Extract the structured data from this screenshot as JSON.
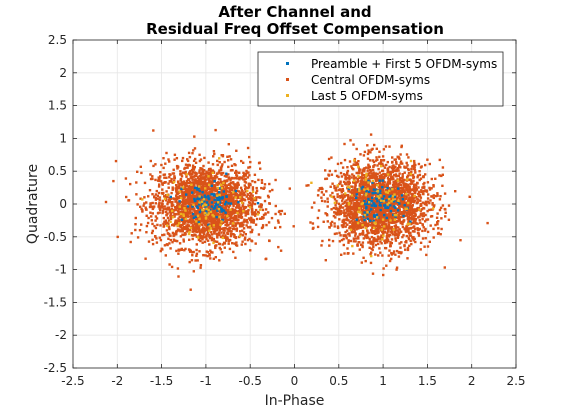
{
  "chart_data": {
    "type": "scatter",
    "title_lines": [
      "After Channel and",
      "Residual Freq Offset Compensation"
    ],
    "xlabel": "In-Phase",
    "ylabel": "Quadrature",
    "xlim": [
      -2.5,
      2.5
    ],
    "ylim": [
      -2.5,
      2.5
    ],
    "xticks": [
      "-2.5",
      "-2",
      "-1.5",
      "-1",
      "-0.5",
      "0",
      "0.5",
      "1",
      "1.5",
      "2",
      "2.5"
    ],
    "yticks": [
      "-2.5",
      "-2",
      "-1.5",
      "-1",
      "-0.5",
      "0",
      "0.5",
      "1",
      "1.5",
      "2",
      "2.5"
    ],
    "grid": true,
    "legend_position": "top-right",
    "series": [
      {
        "name": "Preamble + First 5 OFDM-syms",
        "color": "#0072BD",
        "clusters": [
          {
            "center": [
              -0.95,
              0.0
            ],
            "spread": [
              0.15,
              0.14
            ],
            "count": 110
          },
          {
            "center": [
              0.95,
              0.02
            ],
            "spread": [
              0.15,
              0.14
            ],
            "count": 110
          }
        ]
      },
      {
        "name": "Central OFDM-syms",
        "color": "#D95319",
        "clusters": [
          {
            "center": [
              -1.0,
              -0.02
            ],
            "spread": [
              0.3,
              0.32
            ],
            "count": 2400
          },
          {
            "center": [
              0.98,
              0.0
            ],
            "spread": [
              0.28,
              0.32
            ],
            "count": 2400
          }
        ]
      },
      {
        "name": "Last 5 OFDM-syms",
        "color": "#EDB120",
        "clusters": [
          {
            "center": [
              -0.95,
              0.0
            ],
            "spread": [
              0.25,
              0.27
            ],
            "count": 90
          },
          {
            "center": [
              0.95,
              0.0
            ],
            "spread": [
              0.25,
              0.27
            ],
            "count": 90
          }
        ]
      }
    ]
  }
}
